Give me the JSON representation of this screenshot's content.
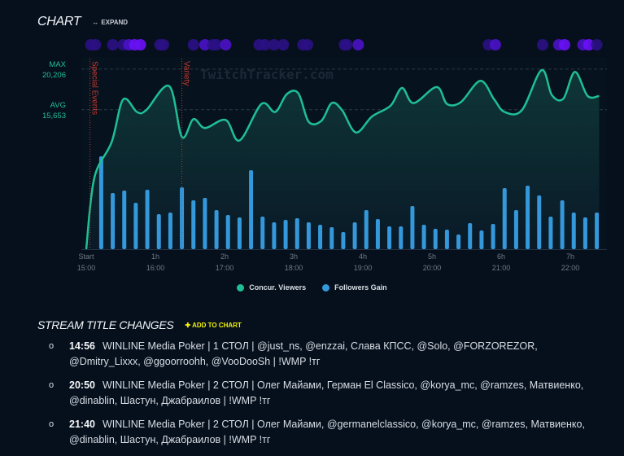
{
  "header": {
    "title": "CHART",
    "expand_label": "EXPAND",
    "expand_icon": "double-arrow-icon"
  },
  "watermark": "TwitchTracker.com",
  "stats": {
    "max_label": "MAX",
    "max_value": "20,206",
    "avg_label": "AVG",
    "avg_value": "15,653"
  },
  "colors": {
    "viewers": "#1fbf95",
    "followers": "#3498db",
    "event_dim": "#2b1185",
    "event_bright": "#6a12f7",
    "marker": "#c0392b",
    "add_to_chart": "#f2f200"
  },
  "chart_data": {
    "type": "line+bar",
    "x_start": "15:00",
    "x_ticks": [
      {
        "label": "Start",
        "time": "15:00"
      },
      {
        "label": "1h",
        "time": "16:00"
      },
      {
        "label": "2h",
        "time": "17:00"
      },
      {
        "label": "3h",
        "time": "18:00"
      },
      {
        "label": "4h",
        "time": "19:00"
      },
      {
        "label": "5h",
        "time": "20:00"
      },
      {
        "label": "6h",
        "time": "21:00"
      },
      {
        "label": "7h",
        "time": "22:00"
      }
    ],
    "reference_lines": [
      {
        "label": "MAX",
        "value": 20206
      },
      {
        "label": "AVG",
        "value": 15653
      }
    ],
    "markers": [
      {
        "label": "Special Events",
        "time": "14:59"
      },
      {
        "label": "Variety",
        "time": "16:23"
      }
    ],
    "legend": [
      "Concur. Viewers",
      "Followers Gain"
    ],
    "legend_position": "bottom",
    "series": [
      {
        "name": "Concur. Viewers",
        "type": "area-line",
        "points": [
          [
            "15:00",
            0
          ],
          [
            "15:07",
            8000
          ],
          [
            "15:22",
            12000
          ],
          [
            "15:32",
            16800
          ],
          [
            "15:44",
            15400
          ],
          [
            "15:52",
            15600
          ],
          [
            "16:12",
            18300
          ],
          [
            "16:23",
            12600
          ],
          [
            "16:33",
            14600
          ],
          [
            "16:43",
            13600
          ],
          [
            "17:01",
            14500
          ],
          [
            "17:13",
            12200
          ],
          [
            "17:32",
            16300
          ],
          [
            "17:44",
            15400
          ],
          [
            "17:54",
            17400
          ],
          [
            "18:04",
            17500
          ],
          [
            "18:13",
            14300
          ],
          [
            "18:24",
            14400
          ],
          [
            "18:33",
            16400
          ],
          [
            "18:42",
            15600
          ],
          [
            "18:54",
            13100
          ],
          [
            "19:08",
            14900
          ],
          [
            "19:24",
            16100
          ],
          [
            "19:34",
            18100
          ],
          [
            "19:44",
            16400
          ],
          [
            "20:04",
            18200
          ],
          [
            "20:13",
            16300
          ],
          [
            "20:25",
            16500
          ],
          [
            "20:42",
            18900
          ],
          [
            "20:54",
            16800
          ],
          [
            "21:03",
            15400
          ],
          [
            "21:18",
            15600
          ],
          [
            "21:35",
            20100
          ],
          [
            "21:44",
            17300
          ],
          [
            "21:54",
            16900
          ],
          [
            "22:04",
            19900
          ],
          [
            "22:15",
            17200
          ],
          [
            "22:25",
            17200
          ]
        ]
      },
      {
        "name": "Followers Gain",
        "type": "bar",
        "first_time": "15:13",
        "interval_minutes": 10,
        "values": [
          114,
          69,
          72,
          57,
          73,
          43,
          45,
          76,
          60,
          63,
          48,
          42,
          39,
          97,
          40,
          33,
          36,
          38,
          33,
          30,
          27,
          21,
          33,
          48,
          37,
          28,
          28,
          53,
          30,
          25,
          24,
          18,
          32,
          23,
          31,
          75,
          48,
          78,
          66,
          40,
          60,
          45,
          39,
          45
        ]
      }
    ],
    "events": [
      {
        "time": "15:04",
        "level": 1
      },
      {
        "time": "15:08",
        "level": 1
      },
      {
        "time": "15:23",
        "level": 1
      },
      {
        "time": "15:32",
        "level": 1
      },
      {
        "time": "15:37",
        "level": 2
      },
      {
        "time": "15:42",
        "level": 3
      },
      {
        "time": "15:47",
        "level": 3
      },
      {
        "time": "16:04",
        "level": 1
      },
      {
        "time": "16:07",
        "level": 1
      },
      {
        "time": "16:33",
        "level": 1
      },
      {
        "time": "16:43",
        "level": 2
      },
      {
        "time": "16:50",
        "level": 1
      },
      {
        "time": "16:53",
        "level": 1
      },
      {
        "time": "17:01",
        "level": 2
      },
      {
        "time": "17:30",
        "level": 1
      },
      {
        "time": "17:35",
        "level": 1
      },
      {
        "time": "17:43",
        "level": 1
      },
      {
        "time": "17:51",
        "level": 1
      },
      {
        "time": "18:08",
        "level": 1
      },
      {
        "time": "18:12",
        "level": 1
      },
      {
        "time": "18:44",
        "level": 1
      },
      {
        "time": "18:46",
        "level": 1
      },
      {
        "time": "18:56",
        "level": 2
      },
      {
        "time": "20:49",
        "level": 1
      },
      {
        "time": "20:55",
        "level": 2
      },
      {
        "time": "21:36",
        "level": 1
      },
      {
        "time": "21:50",
        "level": 2
      },
      {
        "time": "21:55",
        "level": 3
      },
      {
        "time": "22:11",
        "level": 2
      },
      {
        "time": "22:16",
        "level": 3
      },
      {
        "time": "22:23",
        "level": 1
      }
    ]
  },
  "stream_titles": {
    "title": "STREAM TITLE CHANGES",
    "add_label": "ADD TO CHART",
    "items": [
      {
        "time": "14:56",
        "text": "WINLINE Media Poker | 1 СТОЛ | @just_ns, @enzzai, Слава КПСС, @Solo, @FORZOREZOR, @Dmitry_Lixxx, @ggoorroohh, @VooDooSh | !WMP !тг"
      },
      {
        "time": "20:50",
        "text": "WINLINE Media Poker | 2 СТОЛ | Олег Майами, Герман El Classico, @korya_mc, @ramzes, Матвиенко, @dinablin, Шастун, Джабраилов | !WMP !тг"
      },
      {
        "time": "21:40",
        "text": "WINLINE Media Poker | 2 СТОЛ | Олег Майами, @germanelclassico, @korya_mc, @ramzes, Матвиенко, @dinablin, Шастун, Джабраилов | !WMP !тг"
      }
    ]
  }
}
